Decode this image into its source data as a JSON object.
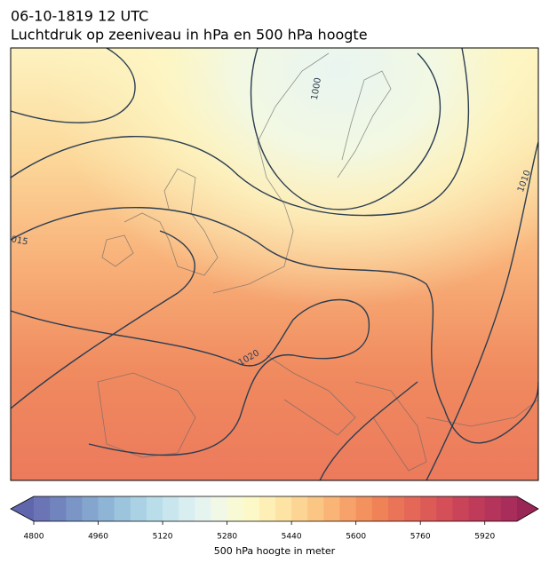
{
  "title": "06-10-1819 12 UTC",
  "subtitle": "Luchtdruk op zeeniveau in hPa en 500 hPa hoogte",
  "isobar_labels": [
    "1000",
    "1010",
    "015",
    "1020"
  ],
  "colorbar": {
    "label": "500 hPa hoogte in meter",
    "lim": [
      4800,
      6000
    ],
    "ticks": [
      4800,
      4960,
      5120,
      5280,
      5440,
      5600,
      5760,
      5920
    ],
    "colors": [
      "#6b74b4",
      "#7184bd",
      "#7a95c6",
      "#84a6ce",
      "#8fb5d6",
      "#9cc4dd",
      "#aad2e4",
      "#b9dde9",
      "#c9e6ee",
      "#d8eef1",
      "#e6f4f0",
      "#f1f8e6",
      "#f8fad5",
      "#fdf8c7",
      "#feefb6",
      "#fde4a4",
      "#fcd594",
      "#fbc584",
      "#f9b476",
      "#f7a26a",
      "#f4925f",
      "#f08258",
      "#ea7457",
      "#e46757",
      "#dc5b57",
      "#d44f58",
      "#ca4459",
      "#c03b5a",
      "#b5345b",
      "#a92d5b"
    ],
    "extend_colors": [
      "#5f66ab",
      "#9a2656"
    ]
  }
}
